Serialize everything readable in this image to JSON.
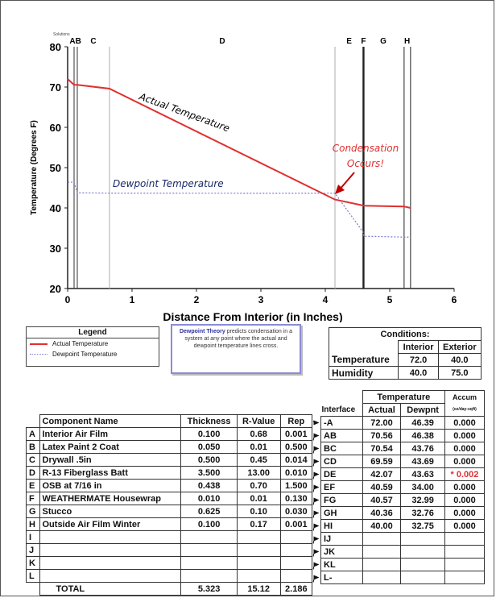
{
  "chart_data": {
    "type": "line",
    "solutions_label": "Solutions",
    "xlabel": "Distance From Interior (in Inches)",
    "ylabel": "Temperature (Degrees F)",
    "xlim": [
      0,
      6
    ],
    "ylim": [
      20,
      80
    ],
    "x_ticks": [
      0,
      1,
      2,
      3,
      4,
      5,
      6
    ],
    "y_ticks": [
      20,
      30,
      40,
      50,
      60,
      70,
      80
    ],
    "layer_boundaries": [
      0,
      0.1,
      0.15,
      0.65,
      4.15,
      4.588,
      4.598,
      5.223,
      5.323
    ],
    "layer_labels": [
      {
        "label": "AB",
        "x": 0.12
      },
      {
        "label": "C",
        "x": 0.4
      },
      {
        "label": "D",
        "x": 2.4
      },
      {
        "label": "E",
        "x": 4.37
      },
      {
        "label": "F",
        "x": 4.593
      },
      {
        "label": "G",
        "x": 4.9
      },
      {
        "label": "H",
        "x": 5.27
      }
    ],
    "series": [
      {
        "name": "Actual Temperature",
        "color": "#e03030",
        "x": [
          0,
          0.1,
          0.15,
          0.65,
          4.15,
          4.588,
          4.598,
          5.223,
          5.323
        ],
        "y": [
          72.0,
          70.56,
          70.54,
          69.59,
          42.07,
          40.59,
          40.57,
          40.36,
          40.0
        ]
      },
      {
        "name": "Dewpoint Temperature",
        "color": "#7a7ad0",
        "x": [
          0,
          0.1,
          0.15,
          0.65,
          4.15,
          4.588,
          4.598,
          5.223,
          5.323
        ],
        "y": [
          46.39,
          46.38,
          43.76,
          43.69,
          43.63,
          34.0,
          32.99,
          32.76,
          32.75
        ]
      }
    ],
    "annotations": {
      "actual": "Actual Temperature",
      "dewpoint": "Dewpoint Temperature",
      "condensation_line1": "Condensation",
      "condensation_line2": "Occurs!"
    }
  },
  "legend": {
    "title": "Legend",
    "items": [
      {
        "label": "Actual Temperature",
        "color": "#e03030"
      },
      {
        "label": "Dewpoint Temperature",
        "color": "#9a9ae0"
      }
    ]
  },
  "theory": {
    "bold": "Dewpoint Theory",
    "text": " predicts condensation in a system at any point where the actual and dewpoint temperature lines cross."
  },
  "conditions": {
    "title": "Conditions:",
    "col_interior": "Interior",
    "col_exterior": "Exterior",
    "rows": [
      {
        "label": "Temperature",
        "interior": "72.0",
        "exterior": "40.0"
      },
      {
        "label": "Humidity",
        "interior": "40.0",
        "exterior": "75.0"
      }
    ]
  },
  "components": {
    "headers": [
      "Component Name",
      "Thickness",
      "R-Value",
      "Rep"
    ],
    "rows": [
      {
        "letter": "A",
        "name": "Interior Air Film",
        "thickness": "0.100",
        "rvalue": "0.68",
        "rep": "0.001"
      },
      {
        "letter": "B",
        "name": "Latex Paint 2 Coat",
        "thickness": "0.050",
        "rvalue": "0.01",
        "rep": "0.500"
      },
      {
        "letter": "C",
        "name": "Drywall .5in",
        "thickness": "0.500",
        "rvalue": "0.45",
        "rep": "0.014"
      },
      {
        "letter": "D",
        "name": "R-13 Fiberglass Batt",
        "thickness": "3.500",
        "rvalue": "13.00",
        "rep": "0.010"
      },
      {
        "letter": "E",
        "name": "OSB at 7/16 in",
        "thickness": "0.438",
        "rvalue": "0.70",
        "rep": "1.500"
      },
      {
        "letter": "F",
        "name": "WEATHERMATE Housewrap",
        "thickness": "0.010",
        "rvalue": "0.01",
        "rep": "0.130"
      },
      {
        "letter": "G",
        "name": "Stucco",
        "thickness": "0.625",
        "rvalue": "0.10",
        "rep": "0.030"
      },
      {
        "letter": "H",
        "name": "Outside Air Film Winter",
        "thickness": "0.100",
        "rvalue": "0.17",
        "rep": "0.001"
      },
      {
        "letter": "I",
        "name": "",
        "thickness": "",
        "rvalue": "",
        "rep": ""
      },
      {
        "letter": "J",
        "name": "",
        "thickness": "",
        "rvalue": "",
        "rep": ""
      },
      {
        "letter": "K",
        "name": "",
        "thickness": "",
        "rvalue": "",
        "rep": ""
      },
      {
        "letter": "L",
        "name": "",
        "thickness": "",
        "rvalue": "",
        "rep": ""
      }
    ],
    "total": {
      "label": "TOTAL",
      "thickness": "5.323",
      "rvalue": "15.12",
      "rep": "2.186"
    }
  },
  "interfaces": {
    "header_temperature": "Temperature",
    "header_interface": "Interface",
    "header_actual": "Actual",
    "header_dewpnt": "Dewpnt",
    "header_accum": "Accum",
    "header_accum_unit": "(oz/day-sqft)",
    "rows": [
      {
        "name": "-A",
        "actual": "72.00",
        "dewpnt": "46.39",
        "accum": "0.000"
      },
      {
        "name": "AB",
        "actual": "70.56",
        "dewpnt": "46.38",
        "accum": "0.000"
      },
      {
        "name": "BC",
        "actual": "70.54",
        "dewpnt": "43.76",
        "accum": "0.000"
      },
      {
        "name": "CD",
        "actual": "69.59",
        "dewpnt": "43.69",
        "accum": "0.000"
      },
      {
        "name": "DE",
        "actual": "42.07",
        "dewpnt": "43.63",
        "accum": "* 0.002",
        "highlight": true
      },
      {
        "name": "EF",
        "actual": "40.59",
        "dewpnt": "34.00",
        "accum": "0.000"
      },
      {
        "name": "FG",
        "actual": "40.57",
        "dewpnt": "32.99",
        "accum": "0.000"
      },
      {
        "name": "GH",
        "actual": "40.36",
        "dewpnt": "32.76",
        "accum": "0.000"
      },
      {
        "name": "HI",
        "actual": "40.00",
        "dewpnt": "32.75",
        "accum": "0.000"
      },
      {
        "name": "IJ",
        "actual": "",
        "dewpnt": "",
        "accum": ""
      },
      {
        "name": "JK",
        "actual": "",
        "dewpnt": "",
        "accum": ""
      },
      {
        "name": "KL",
        "actual": "",
        "dewpnt": "",
        "accum": ""
      },
      {
        "name": "L-",
        "actual": "",
        "dewpnt": "",
        "accum": ""
      }
    ]
  }
}
